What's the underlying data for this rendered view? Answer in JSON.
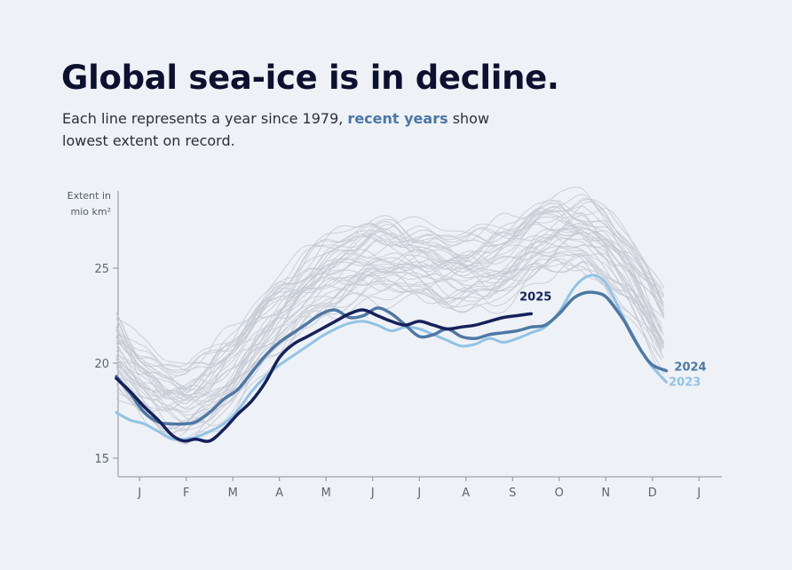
{
  "title": "Global sea-ice is in decline.",
  "subtitle": {
    "before": "Each line represents a year since 1979, ",
    "highlight": "recent years",
    "after": " show lowest extent on record."
  },
  "chart_data": {
    "type": "line",
    "title": "Global sea-ice is in decline.",
    "ylabel": [
      "Extent in",
      "mio km²"
    ],
    "ylim": [
      14,
      29
    ],
    "xlim": [
      0,
      12.2
    ],
    "y_ticks": [
      15,
      20,
      25
    ],
    "x_ticks": [
      {
        "x": 0.5,
        "label": "J"
      },
      {
        "x": 1.5,
        "label": "F"
      },
      {
        "x": 2.5,
        "label": "M"
      },
      {
        "x": 3.5,
        "label": "A"
      },
      {
        "x": 4.5,
        "label": "M"
      },
      {
        "x": 5.5,
        "label": "J"
      },
      {
        "x": 6.5,
        "label": "J"
      },
      {
        "x": 7.5,
        "label": "A"
      },
      {
        "x": 8.5,
        "label": "S"
      },
      {
        "x": 9.5,
        "label": "O"
      },
      {
        "x": 10.5,
        "label": "N"
      },
      {
        "x": 11.5,
        "label": "D"
      },
      {
        "x": 12.5,
        "label": "J"
      }
    ],
    "x_units": "months since Jan 1",
    "background_series": {
      "name": "Years since 1979 (grey)",
      "color": "#c5c9d2",
      "count": 42,
      "climatology_x": [
        0,
        0.5,
        1,
        1.5,
        2,
        2.5,
        3,
        3.5,
        4,
        4.5,
        5,
        5.5,
        6,
        6.5,
        7,
        7.5,
        8,
        8.5,
        9,
        9.5,
        10,
        10.5,
        11,
        11.5,
        12
      ],
      "climatology_y": [
        21.0,
        19.5,
        18.6,
        18.3,
        18.8,
        20.0,
        21.6,
        23.0,
        24.1,
        24.9,
        25.4,
        25.8,
        25.9,
        25.7,
        25.4,
        25.2,
        25.3,
        25.9,
        26.8,
        27.3,
        27.2,
        26.4,
        25.0,
        23.0,
        21.0
      ],
      "spread_upper": 1.5,
      "spread_lower": 2.2
    },
    "series": [
      {
        "name": "2023",
        "label": "2023",
        "color": "#92c3e6",
        "width": 3,
        "x": [
          0,
          0.3,
          0.6,
          0.9,
          1.2,
          1.45,
          1.7,
          2.0,
          2.3,
          2.6,
          2.9,
          3.2,
          3.5,
          3.8,
          4.1,
          4.4,
          4.7,
          5.0,
          5.3,
          5.6,
          5.9,
          6.2,
          6.5,
          6.8,
          7.1,
          7.4,
          7.7,
          8.0,
          8.3,
          8.6,
          8.9,
          9.2,
          9.5,
          9.8,
          10.05,
          10.3,
          10.5,
          10.7,
          10.9,
          11.1,
          11.3,
          11.5,
          11.8
        ],
        "y": [
          17.4,
          17.0,
          16.8,
          16.4,
          16.0,
          16.0,
          16.1,
          16.4,
          16.8,
          17.5,
          18.5,
          19.3,
          19.9,
          20.4,
          20.9,
          21.4,
          21.8,
          22.1,
          22.2,
          22.0,
          21.7,
          21.9,
          21.8,
          21.5,
          21.2,
          20.9,
          21.0,
          21.3,
          21.1,
          21.3,
          21.6,
          21.9,
          22.7,
          23.9,
          24.5,
          24.6,
          24.2,
          23.3,
          22.3,
          21.4,
          20.5,
          19.8,
          19.0
        ]
      },
      {
        "name": "2024",
        "label": "2024",
        "color": "#4e78a5",
        "width": 3.5,
        "x": [
          0,
          0.3,
          0.6,
          0.9,
          1.2,
          1.45,
          1.7,
          2.0,
          2.3,
          2.6,
          2.9,
          3.2,
          3.5,
          3.8,
          4.1,
          4.4,
          4.7,
          5.0,
          5.3,
          5.6,
          5.9,
          6.2,
          6.5,
          6.8,
          7.1,
          7.4,
          7.7,
          8.0,
          8.3,
          8.6,
          8.9,
          9.2,
          9.5,
          9.8,
          10.05,
          10.3,
          10.5,
          10.7,
          10.9,
          11.1,
          11.3,
          11.5,
          11.8
        ],
        "y": [
          19.3,
          18.4,
          17.4,
          16.9,
          16.8,
          16.8,
          16.9,
          17.4,
          18.1,
          18.6,
          19.5,
          20.4,
          21.1,
          21.6,
          22.1,
          22.6,
          22.8,
          22.4,
          22.5,
          22.9,
          22.6,
          22.0,
          21.4,
          21.5,
          21.8,
          21.4,
          21.3,
          21.5,
          21.6,
          21.7,
          21.9,
          22.0,
          22.6,
          23.4,
          23.7,
          23.7,
          23.5,
          22.9,
          22.2,
          21.3,
          20.5,
          19.9,
          19.6
        ]
      },
      {
        "name": "2025",
        "label": "2025",
        "color": "#16205b",
        "width": 3.5,
        "x": [
          0,
          0.3,
          0.6,
          0.9,
          1.2,
          1.45,
          1.7,
          2.0,
          2.3,
          2.6,
          2.9,
          3.2,
          3.5,
          3.8,
          4.1,
          4.4,
          4.7,
          5.0,
          5.3,
          5.6,
          5.9,
          6.2,
          6.5,
          6.8,
          7.1,
          7.4,
          7.7,
          8.0,
          8.3,
          8.6,
          8.9
        ],
        "y": [
          19.2,
          18.5,
          17.7,
          17.0,
          16.2,
          15.9,
          16.0,
          15.9,
          16.5,
          17.3,
          18.0,
          19.0,
          20.3,
          21.0,
          21.4,
          21.8,
          22.2,
          22.6,
          22.8,
          22.5,
          22.2,
          22.0,
          22.2,
          22.0,
          21.8,
          21.9,
          22.0,
          22.2,
          22.4,
          22.5,
          22.6
        ]
      }
    ],
    "annotations": [
      {
        "text": "2025",
        "x": 8.65,
        "y": 23.3,
        "color": "#16205b"
      },
      {
        "text": "2024",
        "x": 11.97,
        "y": 19.6,
        "color": "#4e78a5"
      },
      {
        "text": "2023",
        "x": 11.85,
        "y": 18.8,
        "color": "#92c3e6"
      }
    ]
  }
}
